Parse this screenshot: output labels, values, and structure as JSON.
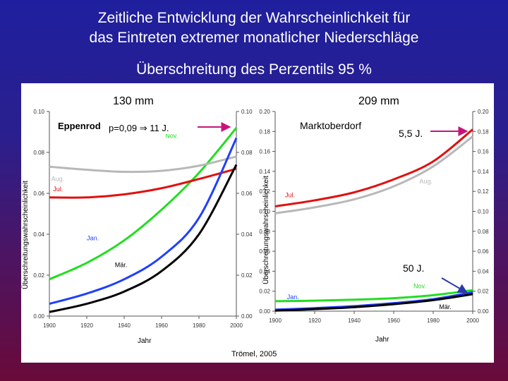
{
  "slide": {
    "title_line1": "Zeitliche Entwicklung der Wahrscheinlichkeit für",
    "title_line2": "das Eintreten extremer monatlicher Niederschläge",
    "subtitle": "Überschreitung des Perzentils 95 %",
    "source": "Trömel, 2005"
  },
  "annotations": {
    "left_threshold": "130 mm",
    "right_threshold": "209 mm",
    "left_note": "p=0,09 ⇒ 11 J.",
    "right_note_top": "5,5 J.",
    "right_note_bottom": "50 J."
  },
  "colors": {
    "background_top": "#1f1f9e",
    "background_bottom": "#6a0a3a",
    "arrow": "#c8147a",
    "arrow_bottom": "#2a3aa8",
    "nov": "#22dd22",
    "aug": "#b8b8b8",
    "jul": "#e01010",
    "jan": "#1f3fff",
    "maer": "#000000"
  },
  "chart_data": [
    {
      "type": "line",
      "station": "Eppenrod",
      "xlabel": "Jahr",
      "ylabel": "Überschreitungswahrscheinlichkeit",
      "xlim": [
        1900,
        2000
      ],
      "ylim": [
        0,
        0.1
      ],
      "xticks": [
        "1900",
        "1920",
        "1940",
        "1960",
        "1980",
        "2000"
      ],
      "yticks": [
        "0.00",
        "0.02",
        "0.04",
        "0.06",
        "0.08",
        "0.10"
      ],
      "grid": false,
      "series": [
        {
          "name": "Nov.",
          "color": "#22dd22",
          "x": [
            1900,
            1920,
            1940,
            1960,
            1980,
            2000
          ],
          "values": [
            0.018,
            0.026,
            0.037,
            0.052,
            0.07,
            0.092
          ]
        },
        {
          "name": "Aug.",
          "color": "#b8b8b8",
          "x": [
            1900,
            1920,
            1940,
            1960,
            1980,
            2000
          ],
          "values": [
            0.073,
            0.0715,
            0.0705,
            0.071,
            0.0735,
            0.078
          ]
        },
        {
          "name": "Jul.",
          "color": "#e01010",
          "x": [
            1900,
            1920,
            1940,
            1960,
            1980,
            2000
          ],
          "values": [
            0.058,
            0.058,
            0.0595,
            0.0625,
            0.067,
            0.072
          ]
        },
        {
          "name": "Jan.",
          "color": "#1f3fff",
          "x": [
            1900,
            1920,
            1940,
            1960,
            1980,
            2000
          ],
          "values": [
            0.006,
            0.011,
            0.018,
            0.029,
            0.048,
            0.087
          ]
        },
        {
          "name": "Mär.",
          "color": "#000000",
          "x": [
            1900,
            1920,
            1940,
            1960,
            1980,
            2000
          ],
          "values": [
            0.002,
            0.006,
            0.012,
            0.022,
            0.04,
            0.074
          ]
        }
      ]
    },
    {
      "type": "line",
      "station": "Marktoberdorf",
      "xlabel": "Jahr",
      "ylabel": "Überschreitungswahrscheinlichkeit",
      "xlim": [
        1900,
        2000
      ],
      "ylim": [
        0,
        0.2
      ],
      "xticks": [
        "1900",
        "1920",
        "1940",
        "1960",
        "1980",
        "2000"
      ],
      "yticks": [
        "0.00",
        "0.02",
        "0.04",
        "0.06",
        "0.08",
        "0.10",
        "0.12",
        "0.14",
        "0.16",
        "0.18",
        "0.20"
      ],
      "grid": false,
      "series": [
        {
          "name": "Jul.",
          "color": "#e01010",
          "x": [
            1900,
            1920,
            1940,
            1960,
            1980,
            2000
          ],
          "values": [
            0.105,
            0.111,
            0.119,
            0.132,
            0.15,
            0.182
          ]
        },
        {
          "name": "Aug.",
          "color": "#b8b8b8",
          "x": [
            1900,
            1920,
            1940,
            1960,
            1980,
            2000
          ],
          "values": [
            0.098,
            0.104,
            0.112,
            0.125,
            0.145,
            0.175
          ]
        },
        {
          "name": "Nov.",
          "color": "#22dd22",
          "x": [
            1900,
            1920,
            1940,
            1960,
            1980,
            2000
          ],
          "values": [
            0.01,
            0.0105,
            0.0115,
            0.013,
            0.016,
            0.021
          ]
        },
        {
          "name": "Jan.",
          "color": "#1f3fff",
          "x": [
            1900,
            1920,
            1940,
            1960,
            1980,
            2000
          ],
          "values": [
            0.0015,
            0.003,
            0.005,
            0.008,
            0.012,
            0.019
          ]
        },
        {
          "name": "Mär.",
          "color": "#000000",
          "x": [
            1900,
            1920,
            1940,
            1960,
            1980,
            2000
          ],
          "values": [
            0.0005,
            0.002,
            0.004,
            0.007,
            0.011,
            0.017
          ]
        }
      ]
    }
  ]
}
